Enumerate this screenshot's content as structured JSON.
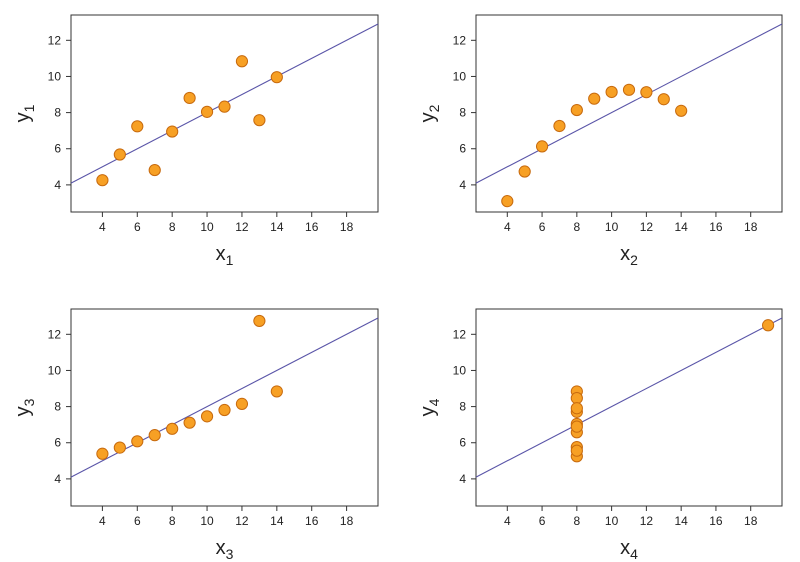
{
  "chart_data": [
    {
      "type": "scatter",
      "xlabel": "x",
      "xlabel_sub": "1",
      "ylabel": "y",
      "ylabel_sub": "1",
      "xlim": [
        2.2,
        19.8
      ],
      "ylim": [
        2.5,
        13.4
      ],
      "xticks": [
        4,
        6,
        8,
        10,
        12,
        14,
        16,
        18
      ],
      "yticks": [
        4,
        6,
        8,
        10,
        12
      ],
      "fit_line": {
        "intercept": 3.0,
        "slope": 0.5
      },
      "x": [
        10,
        8,
        13,
        9,
        11,
        14,
        6,
        4,
        12,
        7,
        5
      ],
      "y": [
        8.04,
        6.95,
        7.58,
        8.81,
        8.33,
        9.96,
        7.24,
        4.26,
        10.84,
        4.82,
        5.68
      ]
    },
    {
      "type": "scatter",
      "xlabel": "x",
      "xlabel_sub": "2",
      "ylabel": "y",
      "ylabel_sub": "2",
      "xlim": [
        2.2,
        19.8
      ],
      "ylim": [
        2.5,
        13.4
      ],
      "xticks": [
        4,
        6,
        8,
        10,
        12,
        14,
        16,
        18
      ],
      "yticks": [
        4,
        6,
        8,
        10,
        12
      ],
      "fit_line": {
        "intercept": 3.0,
        "slope": 0.5
      },
      "x": [
        10,
        8,
        13,
        9,
        11,
        14,
        6,
        4,
        12,
        7,
        5
      ],
      "y": [
        9.14,
        8.14,
        8.74,
        8.77,
        9.26,
        8.1,
        6.13,
        3.1,
        9.13,
        7.26,
        4.74
      ]
    },
    {
      "type": "scatter",
      "xlabel": "x",
      "xlabel_sub": "3",
      "ylabel": "y",
      "ylabel_sub": "3",
      "xlim": [
        2.2,
        19.8
      ],
      "ylim": [
        2.5,
        13.4
      ],
      "xticks": [
        4,
        6,
        8,
        10,
        12,
        14,
        16,
        18
      ],
      "yticks": [
        4,
        6,
        8,
        10,
        12
      ],
      "fit_line": {
        "intercept": 3.0,
        "slope": 0.5
      },
      "x": [
        10,
        8,
        13,
        9,
        11,
        14,
        6,
        4,
        12,
        7,
        5
      ],
      "y": [
        7.46,
        6.77,
        12.74,
        7.11,
        7.81,
        8.84,
        6.08,
        5.39,
        8.15,
        6.42,
        5.73
      ]
    },
    {
      "type": "scatter",
      "xlabel": "x",
      "xlabel_sub": "4",
      "ylabel": "y",
      "ylabel_sub": "4",
      "xlim": [
        2.2,
        19.8
      ],
      "ylim": [
        2.5,
        13.4
      ],
      "xticks": [
        4,
        6,
        8,
        10,
        12,
        14,
        16,
        18
      ],
      "yticks": [
        4,
        6,
        8,
        10,
        12
      ],
      "fit_line": {
        "intercept": 3.0,
        "slope": 0.5
      },
      "x": [
        8,
        8,
        8,
        8,
        8,
        8,
        8,
        19,
        8,
        8,
        8
      ],
      "y": [
        6.58,
        5.76,
        7.71,
        8.84,
        8.47,
        7.04,
        5.25,
        12.5,
        5.56,
        7.91,
        6.89
      ]
    }
  ],
  "colors": {
    "point_fill": "#f7a024",
    "point_stroke": "#c76a0e",
    "fit_line": "#5a55a8",
    "axis": "#333333",
    "text": "#222222"
  }
}
